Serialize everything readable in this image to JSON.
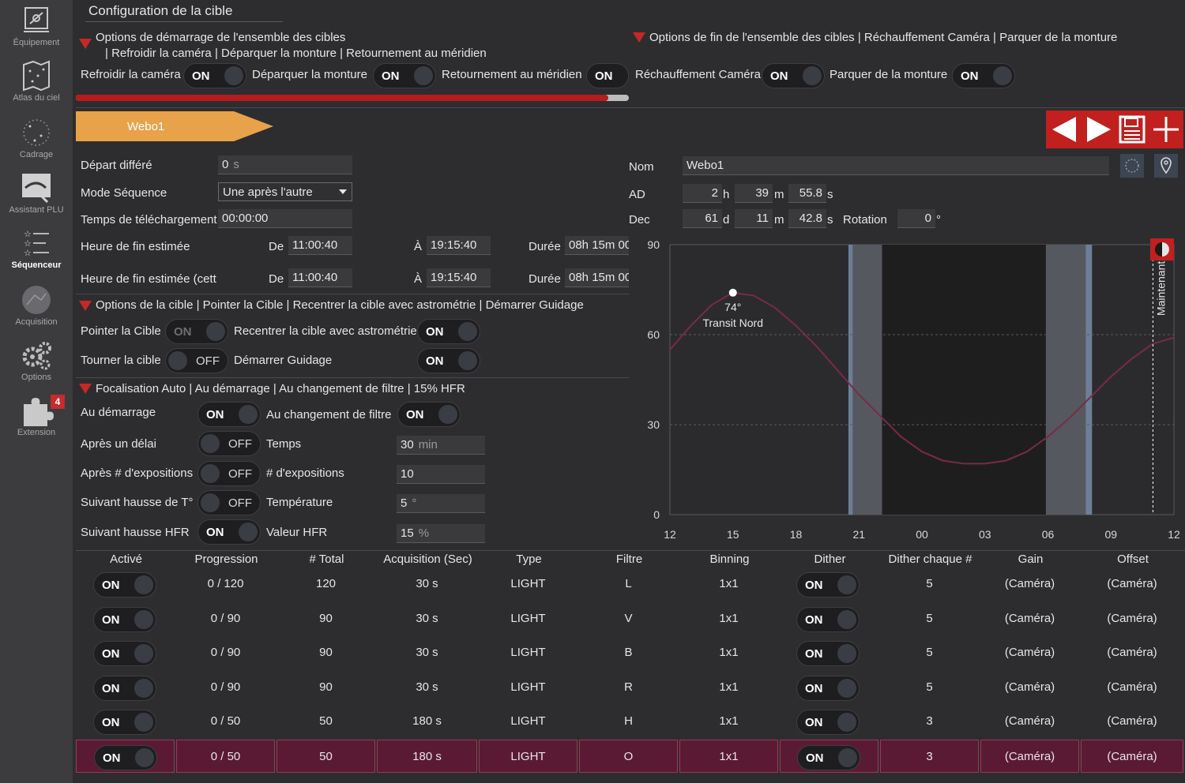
{
  "sidebar": {
    "items": [
      {
        "label": "Équipement",
        "icon": "plug-icon"
      },
      {
        "label": "Atlas du ciel",
        "icon": "sky-atlas-icon"
      },
      {
        "label": "Cadrage",
        "icon": "framing-icon"
      },
      {
        "label": "Assistant PLU",
        "icon": "flat-wizard-icon"
      },
      {
        "label": "Séquenceur",
        "icon": "sequencer-icon"
      },
      {
        "label": "Acquisition",
        "icon": "imaging-icon"
      },
      {
        "label": "Options",
        "icon": "gears-icon"
      },
      {
        "label": "Extension",
        "icon": "puzzle-icon",
        "badge": "4"
      }
    ]
  },
  "header": {
    "title": "Configuration de la cible"
  },
  "start_options": {
    "title": "Options de démarrage de l'ensemble des cibles",
    "subtitle": "| Refroidir la caméra | Déparquer la monture | Retournement au méridien",
    "cool_label": "Refroidir la caméra",
    "cool_state": "ON",
    "unpark_label": "Déparquer la monture",
    "unpark_state": "ON",
    "flip_label": "Retournement au méridien",
    "flip_state": "ON"
  },
  "end_options": {
    "title": "Options de fin de l'ensemble des cibles | Réchauffement Caméra | Parquer de la monture",
    "warm_label": "Réchauffement Caméra",
    "warm_state": "ON",
    "park_label": "Parquer de la monture",
    "park_state": "ON"
  },
  "target_tab": {
    "label": "Webo1"
  },
  "toolbar": {
    "icons": [
      "prev-icon",
      "next-icon",
      "save-icon",
      "add-icon"
    ]
  },
  "sequence": {
    "delay_label": "Départ différé",
    "delay_value": "0",
    "delay_unit": "s",
    "mode_label": "Mode Séquence",
    "mode_value": "Une après l'autre",
    "download_label": "Temps de téléchargement",
    "download_value": "00:00:00",
    "est_end_label": "Heure de fin estimée",
    "est_end2_label": "Heure de fin estimée (cett",
    "from_label": "De",
    "to_label": "À",
    "duration_label": "Durée",
    "row1": {
      "from": "11:00:40",
      "to": "19:15:40",
      "duration": "08h 15m 00"
    },
    "row2": {
      "from": "11:00:40",
      "to": "19:15:40",
      "duration": "08h 15m 00"
    }
  },
  "target": {
    "name_label": "Nom",
    "name_value": "Webo1",
    "ra_label": "AD",
    "ra_h": "2",
    "ra_h_unit": "h",
    "ra_m": "39",
    "ra_m_unit": "m",
    "ra_s": "55.8",
    "ra_s_unit": "s",
    "dec_label": "Dec",
    "dec_d": "61",
    "dec_d_unit": "d",
    "dec_m": "11",
    "dec_m_unit": "m",
    "dec_s": "42.8",
    "dec_s_unit": "s",
    "rotation_label": "Rotation",
    "rotation_value": "0",
    "rotation_unit": "°"
  },
  "target_options": {
    "title": "Options de la cible | Pointer la Cible | Recentrer la cible avec astrométrie | Démarrer Guidage",
    "slew_label": "Pointer la Cible",
    "slew_state": "ON",
    "center_label": "Recentrer la cible avec astrométrie",
    "center_state": "ON",
    "rotate_label": "Tourner la cible",
    "rotate_state": "OFF",
    "guide_label": "Démarrer Guidage",
    "guide_state": "ON"
  },
  "autofocus": {
    "title": "Focalisation Auto | Au démarrage | Au changement de filtre | 15% HFR",
    "start_label": "Au démarrage",
    "start_state": "ON",
    "filter_label": "Au changement de filtre",
    "filter_state": "ON",
    "delay_label": "Après un délai",
    "delay_state": "OFF",
    "time_label": "Temps",
    "time_value": "30",
    "time_unit": "min",
    "exp_label": "Après # d'expositions",
    "exp_state": "OFF",
    "exp_count_label": "# d'expositions",
    "exp_count_value": "10",
    "temp_label": "Suivant hausse de T°",
    "temp_state": "OFF",
    "temp_value_label": "Température",
    "temp_value": "5",
    "temp_unit": "°",
    "hfr_label": "Suivant hausse HFR",
    "hfr_state": "ON",
    "hfr_value_label": "Valeur HFR",
    "hfr_value": "15",
    "hfr_unit": "%"
  },
  "chart_data": {
    "type": "line",
    "title": "",
    "x_ticks": [
      "12",
      "15",
      "18",
      "21",
      "00",
      "03",
      "06",
      "09",
      "12"
    ],
    "y_ticks": [
      "0",
      "30",
      "60",
      "90"
    ],
    "ylim": [
      0,
      90
    ],
    "x_hours_range": [
      12,
      36
    ],
    "series": [
      {
        "name": "altitude",
        "x_hours": [
          12,
          13,
          14,
          15,
          16,
          17,
          18,
          19,
          20,
          21,
          22,
          23,
          24,
          25,
          26,
          27,
          28,
          29,
          30,
          31,
          32,
          33,
          34,
          35,
          36
        ],
        "values": [
          55,
          63,
          70,
          74,
          73,
          69,
          63,
          56,
          48,
          40,
          33,
          26,
          21,
          18,
          17,
          17,
          18,
          21,
          26,
          32,
          39,
          46,
          52,
          57,
          59
        ]
      }
    ],
    "transit": {
      "hour": 15,
      "altitude": 74,
      "label": "74°",
      "sublabel": "Transit Nord"
    },
    "now": {
      "hour": 35.0,
      "label": "Maintenant"
    },
    "twilight_hours": {
      "astro_start": 20.7,
      "astro_end": 31.8,
      "dark_start": 22.1,
      "dark_end": 29.9,
      "nautical_start": 20.5,
      "nautical_end": 32.1
    }
  },
  "grid": {
    "columns": [
      "Activé",
      "Progression",
      "# Total",
      "Acquisition (Sec)",
      "Type",
      "Filtre",
      "Binning",
      "Dither",
      "Dither chaque #",
      "Gain",
      "Offset"
    ],
    "rows": [
      {
        "enabled": "ON",
        "progress": "0 / 120",
        "total": "120",
        "exposure": "30 s",
        "type": "LIGHT",
        "filter": "L",
        "binning": "1x1",
        "dither": "ON",
        "dither_every": "5",
        "gain": "(Caméra)",
        "offset": "(Caméra)"
      },
      {
        "enabled": "ON",
        "progress": "0 / 90",
        "total": "90",
        "exposure": "30 s",
        "type": "LIGHT",
        "filter": "V",
        "binning": "1x1",
        "dither": "ON",
        "dither_every": "5",
        "gain": "(Caméra)",
        "offset": "(Caméra)"
      },
      {
        "enabled": "ON",
        "progress": "0 / 90",
        "total": "90",
        "exposure": "30 s",
        "type": "LIGHT",
        "filter": "B",
        "binning": "1x1",
        "dither": "ON",
        "dither_every": "5",
        "gain": "(Caméra)",
        "offset": "(Caméra)"
      },
      {
        "enabled": "ON",
        "progress": "0 / 90",
        "total": "90",
        "exposure": "30 s",
        "type": "LIGHT",
        "filter": "R",
        "binning": "1x1",
        "dither": "ON",
        "dither_every": "5",
        "gain": "(Caméra)",
        "offset": "(Caméra)"
      },
      {
        "enabled": "ON",
        "progress": "0 / 50",
        "total": "50",
        "exposure": "180 s",
        "type": "LIGHT",
        "filter": "H",
        "binning": "1x1",
        "dither": "ON",
        "dither_every": "3",
        "gain": "(Caméra)",
        "offset": "(Caméra)"
      },
      {
        "enabled": "ON",
        "progress": "0 / 50",
        "total": "50",
        "exposure": "180 s",
        "type": "LIGHT",
        "filter": "O",
        "binning": "1x1",
        "dither": "ON",
        "dither_every": "3",
        "gain": "(Caméra)",
        "offset": "(Caméra)"
      }
    ]
  },
  "colors": {
    "accent_red": "#c62828",
    "tab_orange": "#e8a24a",
    "selected_row": "#5b1a34",
    "curve": "#7a2a45"
  }
}
